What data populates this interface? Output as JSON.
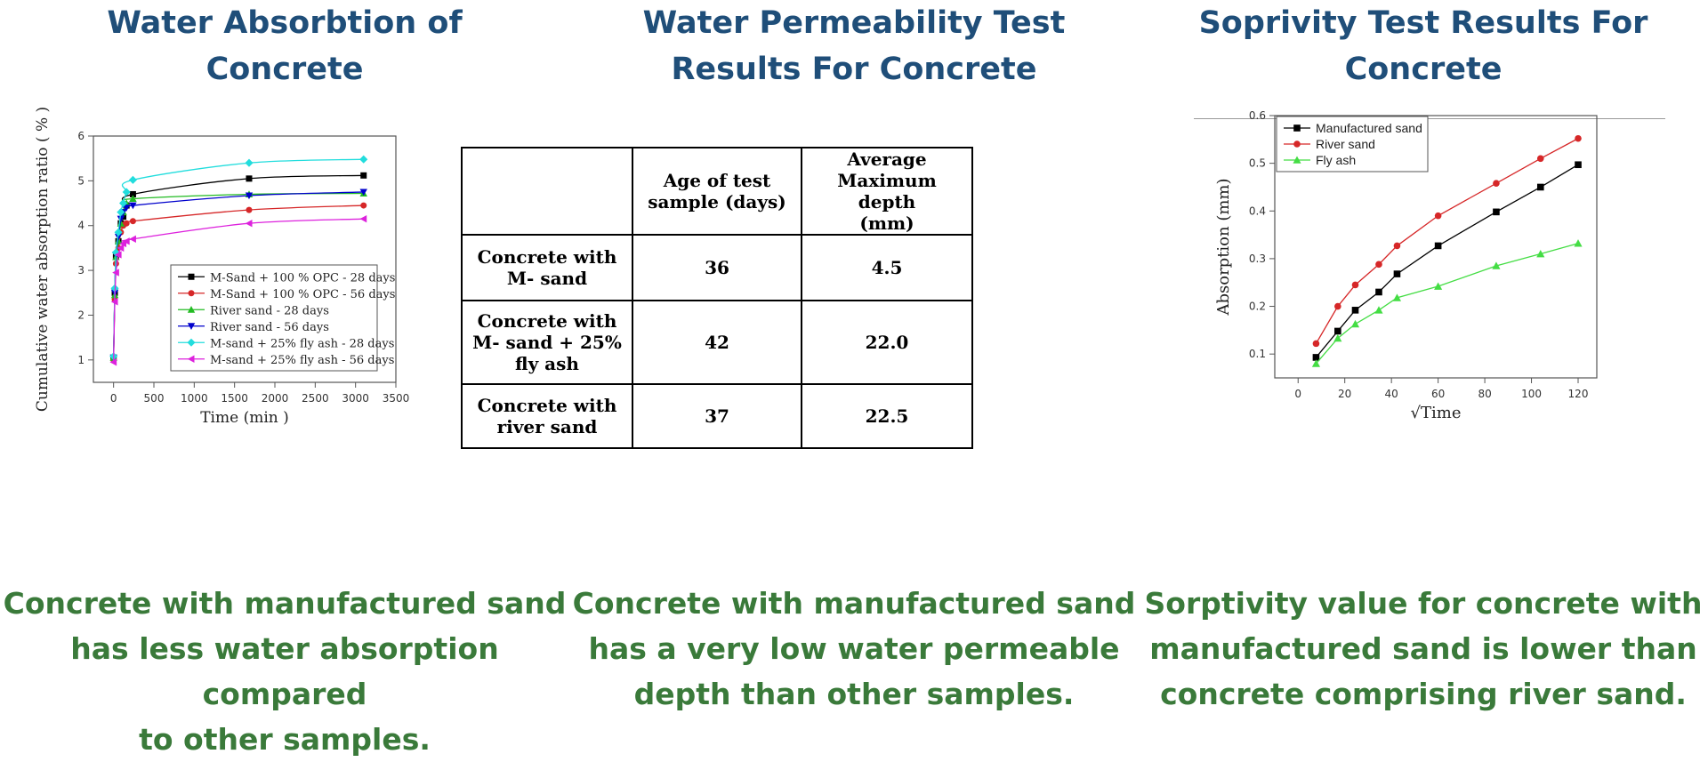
{
  "panels": {
    "absorption": {
      "title": [
        "Water Absorbtion of",
        "Concrete"
      ],
      "caption": [
        "Concrete with manufactured sand",
        "has less water absorption compared",
        "to other samples."
      ]
    },
    "permeability": {
      "title": [
        "Water Permeability Test",
        "Results For Concrete"
      ],
      "caption": [
        "Concrete with manufactured sand",
        "has a very low water permeable",
        "depth than other samples."
      ]
    },
    "sorptivity": {
      "title": [
        "Soprivity Test Results For",
        "Concrete"
      ],
      "caption": [
        "Sorptivity value for concrete with",
        "manufactured sand is lower than",
        "concrete comprising river sand."
      ]
    }
  },
  "chart_data": [
    {
      "type": "line",
      "xlabel": "Time (min )",
      "ylabel": "Cumulative water absorption ratio ( % )",
      "xlim": [
        -250,
        3500
      ],
      "ylim": [
        0.5,
        6
      ],
      "xticks": [
        0,
        500,
        1000,
        1500,
        2000,
        2500,
        3000,
        3500
      ],
      "yticks": [
        1,
        2,
        3,
        4,
        5,
        6
      ],
      "legend": "bottom-right",
      "x": [
        0,
        15,
        30,
        60,
        90,
        120,
        160,
        240,
        1680,
        3100
      ],
      "series": [
        {
          "name": "M-Sand + 100 % OPC - 28 days",
          "color": "#000000",
          "marker": "square",
          "values": [
            1.05,
            2.5,
            3.3,
            3.65,
            4.05,
            4.2,
            4.45,
            4.7,
            5.05,
            5.12
          ]
        },
        {
          "name": "M-Sand + 100 % OPC - 56 days",
          "color": "#d62728",
          "marker": "circle",
          "values": [
            1.0,
            2.35,
            3.15,
            3.5,
            3.85,
            4.0,
            4.05,
            4.1,
            4.35,
            4.45
          ]
        },
        {
          "name": "River sand - 28 days",
          "color": "#22bb22",
          "marker": "triangle-up",
          "values": [
            1.05,
            2.45,
            3.3,
            3.65,
            4.05,
            4.3,
            4.5,
            4.6,
            4.7,
            4.72
          ]
        },
        {
          "name": "River sand - 56 days",
          "color": "#0000cc",
          "marker": "triangle-down",
          "values": [
            1.05,
            2.5,
            3.35,
            3.75,
            4.15,
            4.3,
            4.4,
            4.45,
            4.67,
            4.75
          ]
        },
        {
          "name": "M-sand + 25% fly ash - 28 days",
          "color": "#22dddd",
          "marker": "diamond",
          "values": [
            1.08,
            2.6,
            3.4,
            3.85,
            4.3,
            4.5,
            4.75,
            5.02,
            5.4,
            5.48
          ]
        },
        {
          "name": "M-sand + 25% fly ash - 56 days",
          "color": "#dd22dd",
          "marker": "triangle-left",
          "values": [
            0.95,
            2.3,
            2.95,
            3.35,
            3.5,
            3.6,
            3.65,
            3.7,
            4.05,
            4.15
          ]
        }
      ]
    },
    {
      "type": "table",
      "headers": [
        "",
        "Age of test sample (days)",
        "Average Maximum depth (mm)"
      ],
      "header_lines": [
        [],
        [
          "Age of test",
          "sample (days)"
        ],
        [
          "Average",
          "Maximum depth",
          "(mm)"
        ]
      ],
      "rows": [
        {
          "label_lines": [
            "Concrete with",
            "M- sand"
          ],
          "age": "36",
          "depth": "4.5"
        },
        {
          "label_lines": [
            "Concrete with",
            "M- sand + 25%",
            "fly ash"
          ],
          "age": "42",
          "depth": "22.0"
        },
        {
          "label_lines": [
            "Concrete with",
            "river sand"
          ],
          "age": "37",
          "depth": "22.5"
        }
      ]
    },
    {
      "type": "line",
      "xlabel": "√Time",
      "ylabel": "Absorption (mm)",
      "xlim": [
        -10,
        128
      ],
      "ylim": [
        0.05,
        0.6
      ],
      "xticks": [
        0,
        20,
        40,
        60,
        80,
        100,
        120
      ],
      "yticks": [
        0.1,
        0.2,
        0.3,
        0.4,
        0.5,
        0.6
      ],
      "legend": "top-left",
      "x": [
        7.7,
        17,
        24.5,
        34.6,
        42.4,
        60,
        84.9,
        103.9,
        120
      ],
      "series": [
        {
          "name": "Manufactured sand",
          "color": "#000000",
          "marker": "square",
          "values": [
            0.093,
            0.148,
            0.192,
            0.23,
            0.268,
            0.327,
            0.398,
            0.45,
            0.497
          ]
        },
        {
          "name": "River sand",
          "color": "#d62728",
          "marker": "circle",
          "values": [
            0.122,
            0.2,
            0.245,
            0.288,
            0.327,
            0.39,
            0.458,
            0.51,
            0.552
          ]
        },
        {
          "name": "Fly ash",
          "color": "#44dd44",
          "marker": "triangle-up",
          "values": [
            0.08,
            0.133,
            0.163,
            0.192,
            0.218,
            0.242,
            0.285,
            0.31,
            0.332
          ]
        }
      ]
    }
  ]
}
